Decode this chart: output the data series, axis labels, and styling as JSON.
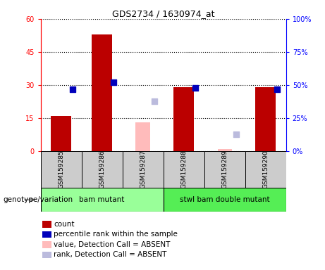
{
  "title": "GDS2734 / 1630974_at",
  "samples": [
    "GSM159285",
    "GSM159286",
    "GSM159287",
    "GSM159288",
    "GSM159289",
    "GSM159290"
  ],
  "count_values": [
    16,
    53,
    null,
    29,
    null,
    29
  ],
  "percentile_values": [
    47,
    52,
    null,
    48,
    null,
    47
  ],
  "absent_value_values": [
    null,
    null,
    13,
    null,
    1,
    null
  ],
  "absent_rank_values": [
    null,
    null,
    38,
    null,
    13,
    null
  ],
  "ylim_left": [
    0,
    60
  ],
  "ylim_right": [
    0,
    100
  ],
  "yticks_left": [
    0,
    15,
    30,
    45,
    60
  ],
  "ytick_labels_left": [
    "0",
    "15",
    "30",
    "45",
    "60"
  ],
  "yticks_right": [
    0,
    25,
    50,
    75,
    100
  ],
  "ytick_labels_right": [
    "0%",
    "25%",
    "50%",
    "75%",
    "100%"
  ],
  "color_count": "#bb0000",
  "color_percentile": "#0000bb",
  "color_absent_value": "#ffbbbb",
  "color_absent_rank": "#bbbbdd",
  "group_labels": [
    "bam mutant",
    "stwl bam double mutant"
  ],
  "group_color1": "#99ff99",
  "group_color2": "#55ee55",
  "bg_color_plot": "#ffffff",
  "bg_color_sample": "#cccccc",
  "genotype_label": "genotype/variation",
  "legend_items": [
    [
      "#bb0000",
      "count"
    ],
    [
      "#0000bb",
      "percentile rank within the sample"
    ],
    [
      "#ffbbbb",
      "value, Detection Call = ABSENT"
    ],
    [
      "#bbbbdd",
      "rank, Detection Call = ABSENT"
    ]
  ]
}
